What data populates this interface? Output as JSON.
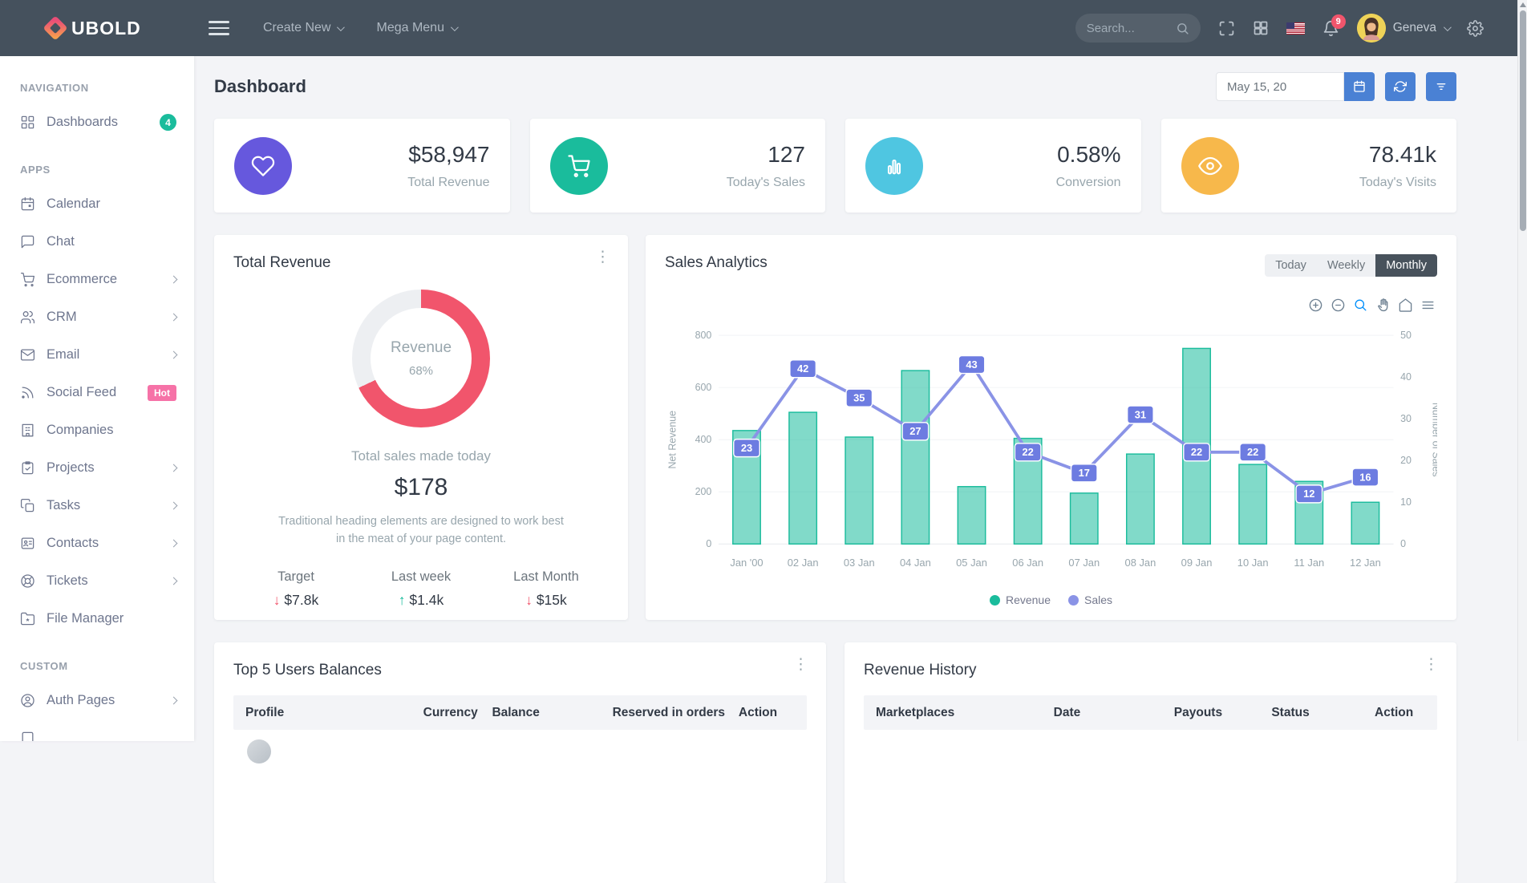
{
  "topbar": {
    "brand": "UBOLD",
    "menus": {
      "create_new": "Create New",
      "mega_menu": "Mega Menu"
    },
    "search": {
      "placeholder": "Search..."
    },
    "notifications_count": "9",
    "user_name": "Geneva"
  },
  "sidebar": {
    "section_navigation": "NAVIGATION",
    "section_apps": "APPS",
    "section_custom": "CUSTOM",
    "items": [
      {
        "label": "Dashboards",
        "badge": "4"
      },
      {
        "label": "Calendar"
      },
      {
        "label": "Chat"
      },
      {
        "label": "Ecommerce",
        "expandable": true
      },
      {
        "label": "CRM",
        "expandable": true
      },
      {
        "label": "Email",
        "expandable": true
      },
      {
        "label": "Social Feed",
        "badge": "Hot"
      },
      {
        "label": "Companies"
      },
      {
        "label": "Projects",
        "expandable": true
      },
      {
        "label": "Tasks",
        "expandable": true
      },
      {
        "label": "Contacts",
        "expandable": true
      },
      {
        "label": "Tickets",
        "expandable": true
      },
      {
        "label": "File Manager"
      },
      {
        "label": "Auth Pages",
        "expandable": true
      }
    ]
  },
  "page": {
    "title": "Dashboard",
    "date_value": "May 15, 20"
  },
  "stats": [
    {
      "value": "$58,947",
      "label": "Total Revenue",
      "icon": "heart-icon",
      "color": "#6658dd"
    },
    {
      "value": "127",
      "label": "Today's Sales",
      "icon": "cart-icon",
      "color": "#1abc9c"
    },
    {
      "value": "0.58%",
      "label": "Conversion",
      "icon": "bar-chart-icon",
      "color": "#4fc6e1"
    },
    {
      "value": "78.41k",
      "label": "Today's Visits",
      "icon": "eye-icon",
      "color": "#f7b84b"
    }
  ],
  "total_revenue_card": {
    "title": "Total Revenue",
    "donut": {
      "label": "Revenue",
      "percent_text": "68%",
      "value": 68,
      "color": "#f1556c",
      "track_color": "#edeff2"
    },
    "subtitle": "Total sales made today",
    "amount": "$178",
    "description": "Traditional heading elements are designed to work best in the meat of your page content.",
    "kpis": [
      {
        "label": "Target",
        "value": "$7.8k",
        "direction": "down"
      },
      {
        "label": "Last week",
        "value": "$1.4k",
        "direction": "up"
      },
      {
        "label": "Last Month",
        "value": "$15k",
        "direction": "down"
      }
    ]
  },
  "sales_analytics": {
    "title": "Sales Analytics",
    "tabs": [
      "Today",
      "Weekly",
      "Monthly"
    ],
    "active_tab": "Monthly"
  },
  "chart_data": {
    "type": "bar+line",
    "title": "Sales Analytics",
    "categories": [
      "Jan '00",
      "02 Jan",
      "03 Jan",
      "04 Jan",
      "05 Jan",
      "06 Jan",
      "07 Jan",
      "08 Jan",
      "09 Jan",
      "10 Jan",
      "11 Jan",
      "12 Jan"
    ],
    "series": [
      {
        "name": "Revenue",
        "type": "bar",
        "axis": "left",
        "color": "#1abc9c",
        "values": [
          435,
          505,
          410,
          665,
          220,
          405,
          195,
          345,
          750,
          305,
          240,
          160
        ]
      },
      {
        "name": "Sales",
        "type": "line",
        "axis": "right",
        "color": "#8a93e6",
        "label_box_color": "#6d7ce1",
        "values": [
          23,
          42,
          35,
          27,
          43,
          22,
          17,
          31,
          22,
          22,
          12,
          16
        ]
      }
    ],
    "y_left": {
      "label": "Net Revenue",
      "min": 0,
      "max": 800,
      "step": 200
    },
    "y_right": {
      "label": "Number of Sales",
      "min": 0,
      "max": 50,
      "step": 10
    },
    "legend_position": "bottom",
    "grid": "horizontal"
  },
  "tables": {
    "users": {
      "title": "Top 5 Users Balances",
      "headers": [
        "Profile",
        "Currency",
        "Balance",
        "Reserved in orders",
        "Action"
      ]
    },
    "revenue": {
      "title": "Revenue History",
      "headers": [
        "Marketplaces",
        "Date",
        "Payouts",
        "Status",
        "Action"
      ]
    }
  }
}
